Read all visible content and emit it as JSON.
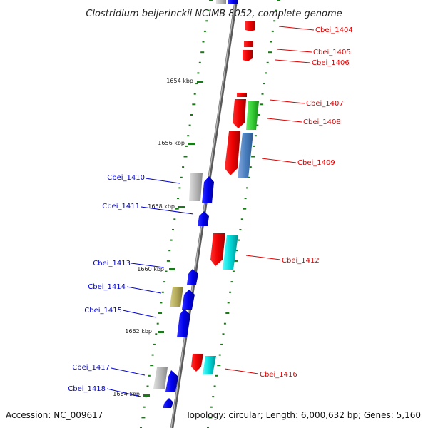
{
  "title": "Clostridium beijerinckii NCIMB 8052, complete genome",
  "accession": "Accession: NC_009617",
  "summary": "Topology: circular; Length: 6,000,632 bp; Genes: 5,160",
  "colors": {
    "forward_label": "#dd0000",
    "reverse_label": "#0000cc",
    "tick": "#1a7a1a",
    "backbone": "#888888"
  },
  "kbp_marks": [
    "1654 kbp",
    "1656 kbp",
    "1658 kbp",
    "1660 kbp",
    "1662 kbp",
    "1664 kbp"
  ],
  "genes_forward": [
    "Cbei_1404",
    "Cbei_1405",
    "Cbei_1406",
    "Cbei_1407",
    "Cbei_1408",
    "Cbei_1409",
    "Cbei_1412",
    "Cbei_1416"
  ],
  "genes_reverse": [
    "Cbei_1410",
    "Cbei_1411",
    "Cbei_1413",
    "Cbei_1414",
    "Cbei_1415",
    "Cbei_1417",
    "Cbei_1418"
  ]
}
